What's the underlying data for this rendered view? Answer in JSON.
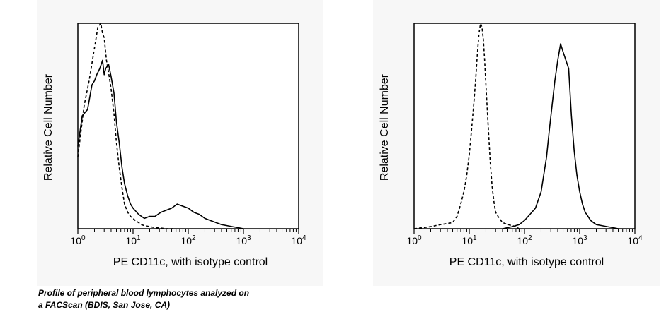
{
  "caption": {
    "line1": "Profile of peripheral blood lymphocytes analyzed on",
    "line2": "a FACScan (BDIS, San Jose, CA)"
  },
  "colors": {
    "line": "#000000",
    "panel_background": "#f7f7f7",
    "plot_background": "#ffffff"
  },
  "chart_data": [
    {
      "type": "line",
      "xscale": "log",
      "xlim": [
        1,
        10000
      ],
      "ylim": [
        0,
        100
      ],
      "xlabel": "PE CD11c, with isotype control",
      "ylabel": "Relative Cell Number",
      "xticks": [
        {
          "base": "10",
          "exp": "0"
        },
        {
          "base": "10",
          "exp": "1"
        },
        {
          "base": "10",
          "exp": "2"
        },
        {
          "base": "10",
          "exp": "3"
        },
        {
          "base": "10",
          "exp": "4"
        }
      ],
      "grid": false,
      "series": [
        {
          "style": "dashed",
          "x": [
            1,
            1.3,
            1.6,
            2,
            2.3,
            2.6,
            2.8,
            3,
            3.3,
            3.6,
            4,
            4.5,
            5,
            5.6,
            6.3,
            7,
            8,
            9,
            10,
            11,
            12.6,
            14,
            16,
            20,
            25,
            32,
            40,
            60
          ],
          "y": [
            35,
            60,
            72,
            88,
            98,
            100,
            95,
            93,
            82,
            76,
            68,
            56,
            42,
            30,
            20,
            12,
            8,
            6,
            5,
            4,
            3,
            2,
            1.5,
            1,
            0.5,
            0.3,
            0,
            0
          ]
        },
        {
          "style": "solid",
          "x": [
            1,
            1.2,
            1.5,
            1.8,
            2,
            2.2,
            2.5,
            2.8,
            3,
            3.2,
            3.6,
            4,
            4.5,
            5,
            5.6,
            6.3,
            7,
            8,
            9,
            10,
            12.6,
            16,
            20,
            25,
            32,
            40,
            50,
            63,
            79,
            100,
            126,
            158,
            200,
            251,
            316,
            400,
            501,
            631,
            800,
            1000
          ],
          "y": [
            40,
            55,
            58,
            70,
            72,
            75,
            78,
            82,
            75,
            78,
            80,
            74,
            66,
            52,
            42,
            30,
            22,
            16,
            12,
            10,
            7,
            5,
            6,
            6,
            8,
            9,
            10,
            12,
            11,
            10,
            8,
            7,
            5,
            4,
            3,
            2,
            1.5,
            1,
            0.5,
            0
          ]
        }
      ]
    },
    {
      "type": "line",
      "xscale": "log",
      "xlim": [
        1,
        10000
      ],
      "ylim": [
        0,
        100
      ],
      "xlabel": "PE CD11c, with isotype control",
      "ylabel": "Relative Cell Number",
      "xticks": [
        {
          "base": "10",
          "exp": "0"
        },
        {
          "base": "10",
          "exp": "1"
        },
        {
          "base": "10",
          "exp": "2"
        },
        {
          "base": "10",
          "exp": "3"
        },
        {
          "base": "10",
          "exp": "4"
        }
      ],
      "grid": false,
      "series": [
        {
          "style": "dashed",
          "x": [
            1,
            2,
            3,
            4,
            5,
            6,
            7,
            8,
            9,
            10,
            11,
            12,
            13,
            14,
            15,
            16,
            17,
            18,
            19,
            20,
            22,
            24,
            26,
            28,
            30,
            35,
            40,
            50,
            60,
            70,
            80
          ],
          "y": [
            0,
            1,
            2,
            2.5,
            3,
            6,
            12,
            18,
            26,
            36,
            48,
            60,
            72,
            85,
            95,
            100,
            98,
            92,
            82,
            70,
            50,
            32,
            20,
            13,
            8,
            5,
            3,
            2,
            1.5,
            1,
            0
          ]
        },
        {
          "style": "solid",
          "x": [
            40,
            60,
            80,
            100,
            126,
            158,
            200,
            251,
            282,
            316,
            355,
            400,
            450,
            501,
            562,
            631,
            708,
            794,
            891,
            1000,
            1122,
            1259,
            1413,
            1585,
            1778,
            2000,
            2512,
            3162,
            4000,
            5000
          ],
          "y": [
            0,
            1,
            2,
            4,
            7,
            10,
            18,
            35,
            48,
            60,
            72,
            82,
            90,
            86,
            82,
            78,
            55,
            38,
            26,
            18,
            12,
            8,
            6,
            4,
            3,
            2,
            1.5,
            1,
            0.5,
            0
          ]
        }
      ]
    }
  ]
}
